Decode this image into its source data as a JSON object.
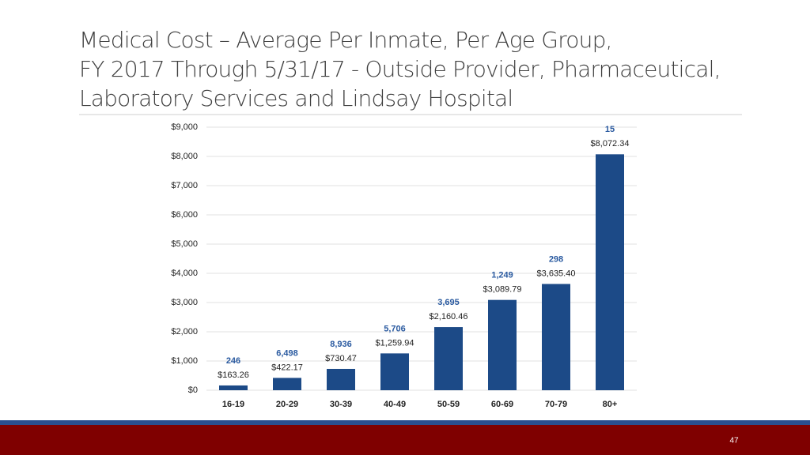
{
  "chart_data": {
    "type": "bar",
    "title": [
      "Medical Cost – Average Per Inmate, Per Age Group,",
      "FY 2017 Through 5/31/17 - Outside Provider, Pharmaceutical,",
      "Laboratory Services and Lindsay Hospital"
    ],
    "categories": [
      "16-19",
      "20-29",
      "30-39",
      "40-49",
      "50-59",
      "60-69",
      "70-79",
      "80+"
    ],
    "values": [
      163.26,
      422.17,
      730.47,
      1259.94,
      2160.46,
      3089.79,
      3635.4,
      8072.34
    ],
    "value_labels": [
      "$163.26",
      "$422.17",
      "$730.47",
      "$1,259.94",
      "$2,160.46",
      "$3,089.79",
      "$3,635.40",
      "$8,072.34"
    ],
    "annotations": [
      "246",
      "6,498",
      "8,936",
      "5,706",
      "3,695",
      "1,249",
      "298",
      "15"
    ],
    "color": "#1c4a87",
    "ylim": [
      0,
      9000
    ],
    "yticks": [
      {
        "value": 0,
        "label": "$0"
      },
      {
        "value": 1000,
        "label": "$1,000"
      },
      {
        "value": 2000,
        "label": "$2,000"
      },
      {
        "value": 3000,
        "label": "$3,000"
      },
      {
        "value": 4000,
        "label": "$4,000"
      },
      {
        "value": 5000,
        "label": "$5,000"
      },
      {
        "value": 6000,
        "label": "$6,000"
      },
      {
        "value": 7000,
        "label": "$7,000"
      },
      {
        "value": 8000,
        "label": "$8,000"
      },
      {
        "value": 9000,
        "label": "$9,000"
      }
    ],
    "grid": true
  },
  "page_number": "47"
}
